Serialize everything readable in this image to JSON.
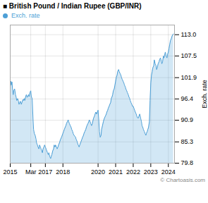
{
  "chart_data": {
    "type": "area",
    "title": "■ British Pound / Indian Rupee (GBP/INR)",
    "ylabel": "Exch. rate",
    "annotations": [
      "© Chartoasis.com"
    ],
    "legend": "top-left",
    "grid": true,
    "xlim": [
      2015.0,
      2024.35
    ],
    "xticks": [
      2015,
      {
        "value": 2016.17,
        "label": "Mar"
      },
      2017,
      2018,
      2020,
      2021,
      2022,
      2023,
      2024
    ],
    "ylim": [
      79.8,
      115.5
    ],
    "yticks": [
      79.8,
      85.3,
      90.9,
      96.4,
      101.9,
      107.5,
      {
        "value": 113.0,
        "label": "113.0"
      }
    ],
    "x": [
      2015.0,
      2015.03,
      2015.06,
      2015.1,
      2015.13,
      2015.17,
      2015.2,
      2015.25,
      2015.3,
      2015.33,
      2015.37,
      2015.42,
      2015.47,
      2015.5,
      2015.55,
      2015.58,
      2015.63,
      2015.67,
      2015.72,
      2015.75,
      2015.8,
      2015.83,
      2015.88,
      2015.92,
      2015.96,
      2016.0,
      2016.04,
      2016.08,
      2016.12,
      2016.17,
      2016.2,
      2016.25,
      2016.3,
      2016.33,
      2016.37,
      2016.42,
      2016.47,
      2016.5,
      2016.55,
      2016.58,
      2016.63,
      2016.67,
      2016.72,
      2016.75,
      2016.8,
      2016.83,
      2016.87,
      2016.92,
      2016.96,
      2017.0,
      2017.04,
      2017.08,
      2017.12,
      2017.17,
      2017.2,
      2017.25,
      2017.3,
      2017.33,
      2017.37,
      2017.42,
      2017.47,
      2017.5,
      2017.55,
      2017.58,
      2017.63,
      2017.67,
      2017.72,
      2017.75,
      2017.8,
      2017.83,
      2017.87,
      2017.92,
      2017.96,
      2018.0,
      2018.04,
      2018.08,
      2018.12,
      2018.17,
      2018.2,
      2018.25,
      2018.3,
      2018.33,
      2018.37,
      2018.42,
      2018.47,
      2018.5,
      2018.55,
      2018.58,
      2018.63,
      2018.67,
      2018.72,
      2018.75,
      2018.8,
      2018.83,
      2018.87,
      2018.92,
      2018.96,
      2019.0,
      2019.04,
      2019.08,
      2019.12,
      2019.17,
      2019.2,
      2019.25,
      2019.3,
      2019.33,
      2019.37,
      2019.42,
      2019.47,
      2019.5,
      2019.55,
      2019.58,
      2019.63,
      2019.67,
      2019.72,
      2019.75,
      2019.8,
      2019.83,
      2019.87,
      2019.92,
      2019.96,
      2020.0,
      2020.04,
      2020.08,
      2020.12,
      2020.17,
      2020.2,
      2020.25,
      2020.3,
      2020.33,
      2020.37,
      2020.42,
      2020.47,
      2020.5,
      2020.55,
      2020.58,
      2020.63,
      2020.67,
      2020.72,
      2020.75,
      2020.8,
      2020.83,
      2020.87,
      2020.92,
      2020.96,
      2021.0,
      2021.04,
      2021.08,
      2021.12,
      2021.17,
      2021.2,
      2021.25,
      2021.3,
      2021.33,
      2021.37,
      2021.42,
      2021.47,
      2021.5,
      2021.55,
      2021.58,
      2021.63,
      2021.67,
      2021.72,
      2021.75,
      2021.8,
      2021.83,
      2021.87,
      2021.92,
      2021.96,
      2022.0,
      2022.04,
      2022.08,
      2022.12,
      2022.17,
      2022.2,
      2022.25,
      2022.3,
      2022.33,
      2022.37,
      2022.42,
      2022.47,
      2022.5,
      2022.55,
      2022.58,
      2022.63,
      2022.67,
      2022.72,
      2022.75,
      2022.8,
      2022.83,
      2022.87,
      2022.92,
      2022.96,
      2023.0,
      2023.04,
      2023.08,
      2023.12,
      2023.17,
      2023.2,
      2023.25,
      2023.3,
      2023.33,
      2023.37,
      2023.42,
      2023.47,
      2023.5,
      2023.55,
      2023.58,
      2023.63,
      2023.67,
      2023.72,
      2023.75,
      2023.8,
      2023.83,
      2023.87,
      2023.92,
      2023.96,
      2024.0,
      2024.04,
      2024.08,
      2024.12,
      2024.17,
      2024.2,
      2024.25,
      2024.29
    ],
    "series": [
      {
        "name": "Exch. rate",
        "color": "#4d9fd6",
        "values": [
          99.5,
          101.0,
          100.0,
          100.8,
          99.0,
          97.5,
          98.5,
          99.0,
          97.5,
          97.0,
          96.0,
          96.5,
          95.8,
          95.0,
          95.5,
          95.8,
          95.0,
          95.5,
          96.2,
          96.0,
          96.5,
          96.0,
          97.0,
          97.5,
          96.8,
          97.0,
          97.5,
          97.0,
          98.0,
          98.5,
          97.0,
          96.5,
          91.0,
          88.5,
          87.5,
          87.0,
          86.0,
          85.0,
          84.5,
          84.0,
          83.5,
          84.5,
          84.0,
          83.5,
          83.0,
          82.5,
          83.5,
          84.0,
          84.5,
          84.0,
          83.5,
          83.0,
          82.5,
          82.0,
          82.5,
          81.5,
          81.0,
          81.5,
          82.0,
          83.0,
          83.5,
          84.5,
          84.0,
          84.5,
          84.0,
          83.5,
          84.0,
          84.5,
          85.0,
          85.5,
          86.0,
          86.5,
          87.0,
          87.5,
          88.0,
          88.5,
          89.0,
          89.5,
          90.0,
          90.5,
          91.0,
          90.5,
          90.0,
          89.5,
          89.0,
          88.5,
          88.0,
          87.5,
          87.0,
          86.8,
          86.5,
          86.0,
          85.5,
          85.0,
          84.5,
          84.0,
          84.5,
          85.0,
          85.5,
          86.0,
          86.5,
          87.0,
          87.5,
          88.0,
          88.5,
          89.0,
          89.5,
          90.0,
          90.5,
          91.0,
          90.5,
          90.0,
          89.5,
          90.0,
          91.0,
          91.5,
          92.0,
          92.5,
          93.0,
          92.5,
          93.0,
          93.5,
          91.0,
          88.0,
          86.5,
          87.0,
          88.5,
          89.5,
          90.5,
          91.0,
          91.5,
          92.0,
          92.5,
          93.0,
          93.5,
          94.0,
          94.5,
          95.0,
          95.5,
          96.5,
          97.0,
          97.5,
          98.5,
          99.0,
          100.0,
          101.0,
          102.0,
          102.5,
          103.5,
          104.0,
          103.5,
          103.0,
          102.5,
          102.0,
          101.5,
          101.0,
          100.5,
          100.0,
          99.5,
          99.0,
          98.5,
          98.0,
          97.5,
          97.0,
          96.5,
          96.0,
          95.5,
          95.0,
          94.5,
          94.5,
          94.0,
          93.5,
          93.0,
          92.5,
          92.0,
          91.5,
          91.5,
          92.0,
          92.5,
          91.5,
          90.5,
          89.5,
          89.0,
          88.5,
          88.0,
          87.5,
          87.0,
          87.5,
          88.0,
          88.5,
          89.0,
          90.5,
          96.0,
          100.5,
          102.5,
          103.5,
          104.5,
          105.0,
          106.5,
          105.5,
          105.0,
          104.0,
          104.5,
          105.5,
          106.0,
          106.5,
          107.0,
          106.5,
          105.5,
          106.0,
          107.5,
          107.0,
          108.0,
          108.5,
          107.5,
          107.0,
          108.0,
          108.5,
          109.5,
          110.5,
          111.5,
          112.0,
          112.5,
          113.0,
          113.2
        ]
      }
    ]
  }
}
